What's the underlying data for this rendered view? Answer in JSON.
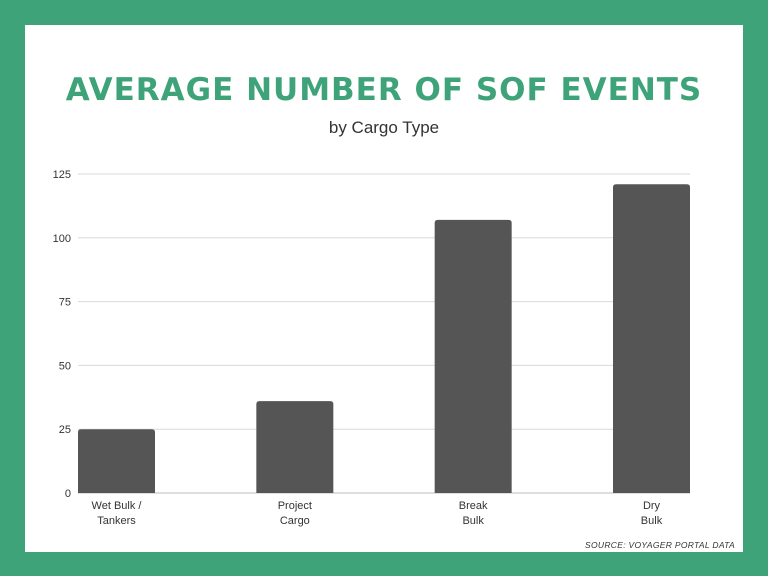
{
  "chart_data": {
    "type": "bar",
    "title": "AVERAGE NUMBER OF SOF EVENTS",
    "subtitle": "by Cargo Type",
    "categories": [
      [
        "Wet Bulk /",
        "Tankers"
      ],
      [
        "Project",
        "Cargo"
      ],
      [
        "Break",
        "Bulk"
      ],
      [
        "Dry",
        "Bulk"
      ]
    ],
    "values": [
      25,
      36,
      107,
      121
    ],
    "ylim": [
      0,
      125
    ],
    "yticks": [
      0,
      25,
      50,
      75,
      100,
      125
    ],
    "grid": true,
    "bar_color": "#555555",
    "source": "SOURCE: VOYAGER PORTAL DATA"
  },
  "colors": {
    "background": "#3fa37a",
    "title": "#3fa37a",
    "grid": "#d9d9d9"
  }
}
